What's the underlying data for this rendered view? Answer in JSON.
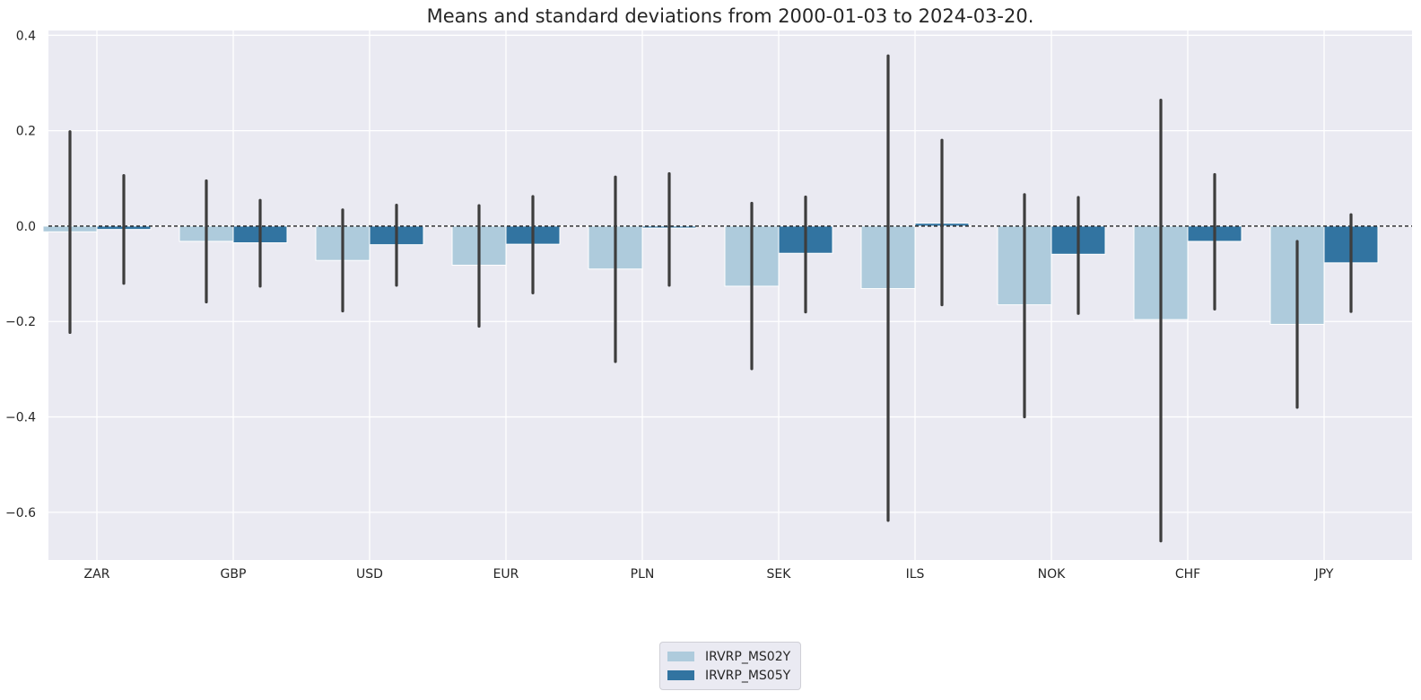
{
  "chart_data": {
    "type": "bar",
    "title": "Means and standard deviations from 2000-01-03 to 2024-03-20.",
    "xlabel": "",
    "ylabel": "",
    "categories": [
      "ZAR",
      "GBP",
      "USD",
      "EUR",
      "PLN",
      "SEK",
      "ILS",
      "NOK",
      "CHF",
      "JPY"
    ],
    "ylim": [
      -0.7,
      0.41
    ],
    "yticks": [
      0.4,
      0.2,
      0.0,
      -0.2,
      -0.4,
      -0.6
    ],
    "ytick_labels": [
      "0.4",
      "0.2",
      "0.0",
      "−0.2",
      "−0.4",
      "−0.6"
    ],
    "grid": true,
    "zero_line": true,
    "legend_position": "bottom-center",
    "series": [
      {
        "name": "IRVRP_MS02Y",
        "color": "#aecbdc",
        "values": [
          -0.012,
          -0.032,
          -0.072,
          -0.082,
          -0.09,
          -0.126,
          -0.131,
          -0.165,
          -0.196,
          -0.206
        ],
        "err_low": [
          -0.223,
          -0.159,
          -0.178,
          -0.21,
          -0.284,
          -0.299,
          -0.617,
          -0.4,
          -0.66,
          -0.38
        ],
        "err_high": [
          0.198,
          0.095,
          0.034,
          0.043,
          0.103,
          0.048,
          0.357,
          0.066,
          0.264,
          -0.032
        ]
      },
      {
        "name": "IRVRP_MS05Y",
        "color": "#3274a1",
        "values": [
          -0.007,
          -0.035,
          -0.039,
          -0.038,
          -0.004,
          -0.057,
          0.006,
          -0.059,
          -0.032,
          -0.077
        ],
        "err_low": [
          -0.12,
          -0.126,
          -0.124,
          -0.14,
          -0.124,
          -0.18,
          -0.165,
          -0.183,
          -0.174,
          -0.179
        ],
        "err_high": [
          0.106,
          0.054,
          0.044,
          0.062,
          0.11,
          0.061,
          0.18,
          0.06,
          0.108,
          0.024
        ]
      }
    ]
  }
}
